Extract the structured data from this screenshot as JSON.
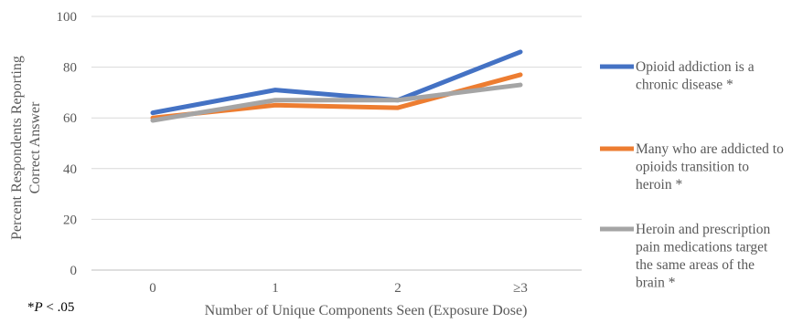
{
  "chart_data": {
    "type": "line",
    "categories": [
      "0",
      "1",
      "2",
      "≥3"
    ],
    "xlabel": "Number of Unique Components Seen (Exposure Dose)",
    "ylabel": "Percent Respondents Reporting Correct Answer",
    "ylim": [
      0,
      100
    ],
    "yticks": [
      "0",
      "20",
      "40",
      "60",
      "80",
      "100"
    ],
    "grid": true,
    "legend_position": "right",
    "series": [
      {
        "name": "Opioid addiction is a chronic disease *",
        "legend_lines": [
          "Opioid addiction is a",
          "chronic disease *"
        ],
        "color": "#4472C4",
        "values": [
          62,
          71,
          67,
          86
        ]
      },
      {
        "name": "Many who are addicted to opioids transition to heroin *",
        "legend_lines": [
          "Many who are addicted to",
          "opioids transition to",
          "heroin *"
        ],
        "color": "#ED7D31",
        "values": [
          60,
          65,
          64,
          77
        ]
      },
      {
        "name": "Heroin and prescription pain medications target the same areas of the brain *",
        "legend_lines": [
          "Heroin and prescription",
          "pain medications target",
          "the same areas of the",
          "brain *"
        ],
        "color": "#A5A5A5",
        "values": [
          59,
          67,
          67,
          73
        ]
      }
    ],
    "note": {
      "prefix": "*",
      "italic": "P",
      "suffix": " < .05"
    }
  }
}
